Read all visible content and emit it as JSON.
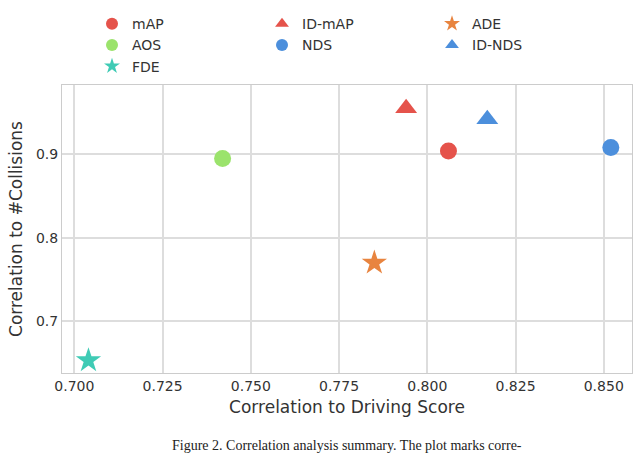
{
  "chart_data": {
    "type": "scatter",
    "x_label": "Correlation to Driving Score",
    "y_label": "Correlation to #Collisions",
    "series": [
      {
        "name": "mAP",
        "color": "#e5534b",
        "marker": "circle",
        "x": [
          0.806
        ],
        "values": [
          0.904
        ]
      },
      {
        "name": "ID-mAP",
        "color": "#e5534b",
        "marker": "triangle-up",
        "x": [
          0.794
        ],
        "values": [
          0.955
        ]
      },
      {
        "name": "ADE",
        "color": "#e8843f",
        "marker": "star",
        "x": [
          0.785
        ],
        "values": [
          0.77
        ]
      },
      {
        "name": "AOS",
        "color": "#9be36c",
        "marker": "circle",
        "x": [
          0.742
        ],
        "values": [
          0.895
        ]
      },
      {
        "name": "NDS",
        "color": "#4c8fdc",
        "marker": "circle",
        "x": [
          0.852
        ],
        "values": [
          0.908
        ]
      },
      {
        "name": "ID-NDS",
        "color": "#4c8fdc",
        "marker": "triangle-up",
        "x": [
          0.817
        ],
        "values": [
          0.942
        ]
      },
      {
        "name": "FDE",
        "color": "#3fcbb5",
        "marker": "star",
        "x": [
          0.704
        ],
        "values": [
          0.653
        ]
      }
    ],
    "xlim": [
      0.6965,
      0.858
    ],
    "ylim": [
      0.638,
      0.983
    ],
    "xticks": [
      {
        "value": 0.7,
        "label": "0.700"
      },
      {
        "value": 0.725,
        "label": "0.725"
      },
      {
        "value": 0.75,
        "label": "0.750"
      },
      {
        "value": 0.775,
        "label": "0.775"
      },
      {
        "value": 0.8,
        "label": "0.800"
      },
      {
        "value": 0.825,
        "label": "0.825"
      },
      {
        "value": 0.85,
        "label": "0.850"
      }
    ],
    "yticks": [
      0.7,
      0.8,
      0.9
    ],
    "grid": true,
    "legend": "top",
    "annotations": [
      {
        "text": "Figure 2. Correlation analysis summary. The plot marks corre-"
      }
    ]
  }
}
